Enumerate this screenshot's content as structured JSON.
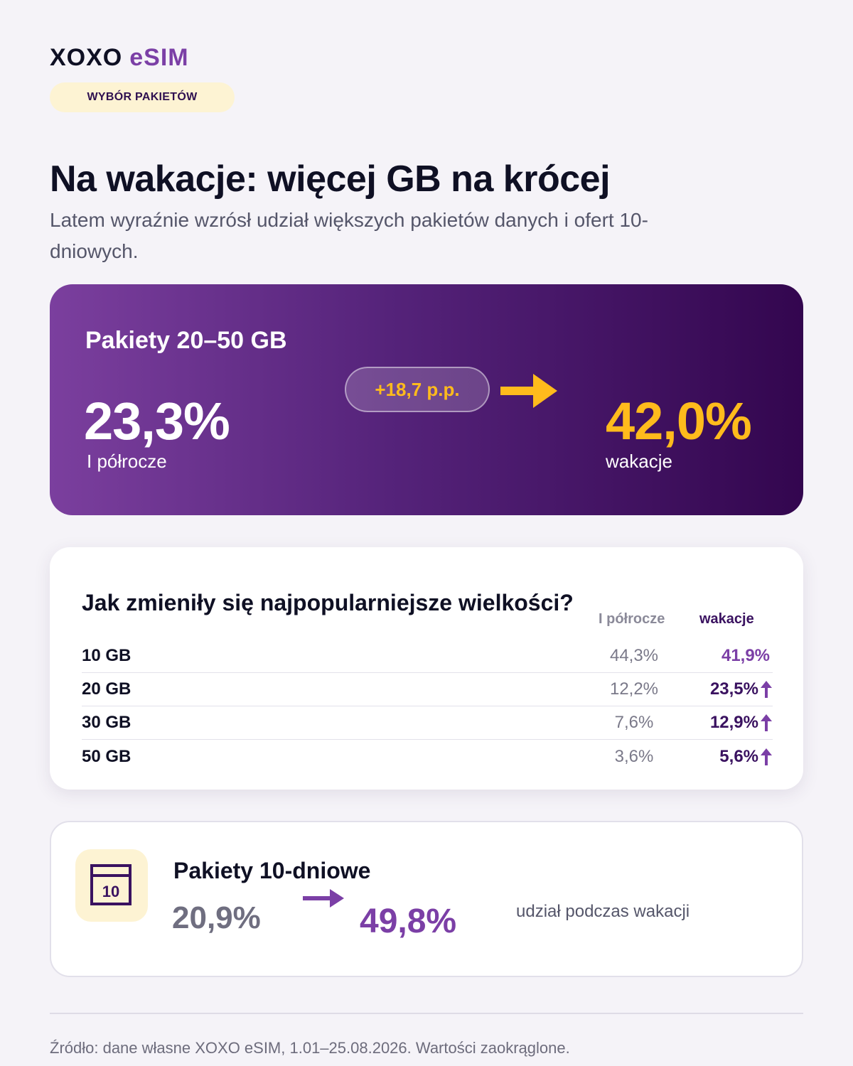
{
  "brand": {
    "name": "XOXO",
    "product": "eSIM"
  },
  "tag": "WYBÓR PAKIETÓW",
  "title": "Na wakacje: więcej GB na krócej",
  "subtitle": "Latem wyraźnie wzrósł udział większych pakietów danych i ofert 10-dniowych.",
  "hero": {
    "title": "Pakiety 20–50 GB",
    "from_value": "23,3%",
    "from_label": "I półrocze",
    "delta": "+18,7 p.p.",
    "to_value": "42,0%",
    "to_label": "wakacje",
    "arrow_icon": "arrow-right-icon"
  },
  "sizes": {
    "question": "Jak zmieniły się najpopularniejsze wielkości?",
    "col_a": "I półrocze",
    "col_b": "wakacje",
    "rows": [
      {
        "size": "10 GB",
        "a": "44,3%",
        "b": "41,9%",
        "up": false
      },
      {
        "size": "20 GB",
        "a": "12,2%",
        "b": "23,5%",
        "up": true
      },
      {
        "size": "30 GB",
        "a": "7,6%",
        "b": "12,9%",
        "up": true
      },
      {
        "size": "50 GB",
        "a": "3,6%",
        "b": "5,6%",
        "up": true
      }
    ]
  },
  "ten_day": {
    "icon": "calendar-icon",
    "icon_number": "10",
    "title": "Pakiety 10-dniowe",
    "from_value": "20,9%",
    "to_value": "49,8%",
    "label": "udział podczas wakacji"
  },
  "source": "Źródło: dane własne XOXO eSIM, 1.01–25.08.2026. Wartości zaokrąglone.",
  "colors": {
    "accent": "#7b3fa6",
    "dark_purple": "#3a1260",
    "yellow": "#ffbb1c",
    "background": "#f5f3f8"
  }
}
